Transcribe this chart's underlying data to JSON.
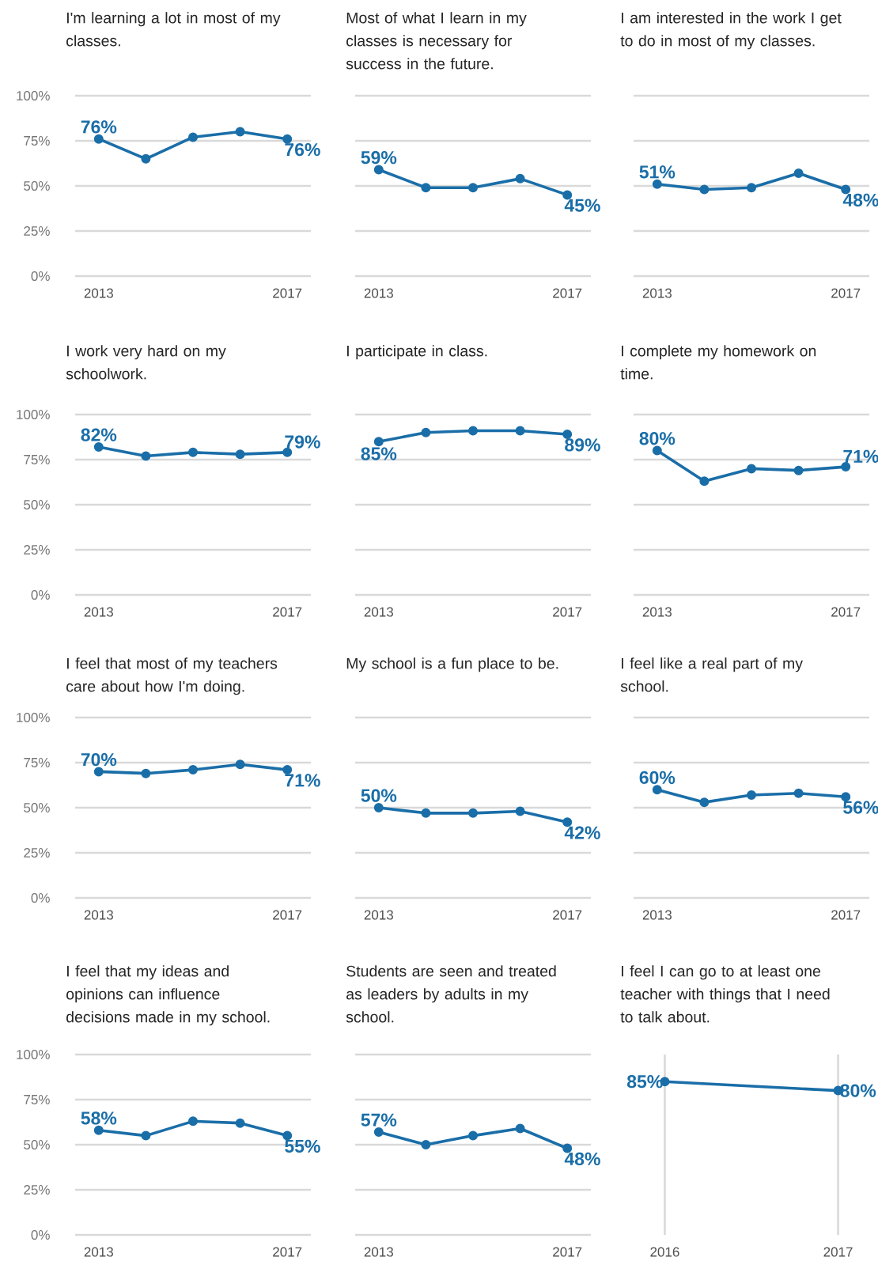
{
  "chart_data": [
    {
      "type": "line",
      "title": "I'm learning a lot in most of my classes.",
      "categories": [
        "2013",
        null,
        null,
        null,
        "2017"
      ],
      "values": [
        76,
        65,
        77,
        80,
        76
      ],
      "value_labels": [
        "76%",
        null,
        null,
        null,
        "76%"
      ],
      "color": "#1a6ea8",
      "ylim": [
        0,
        100
      ],
      "yticks": [
        {
          "value": 0,
          "label": "0%"
        },
        {
          "value": 25,
          "label": "25%"
        },
        {
          "value": 50,
          "label": "50%"
        },
        {
          "value": 75,
          "label": "75%"
        },
        {
          "value": 100,
          "label": "100%"
        }
      ],
      "grid": "y",
      "marker": "circle"
    },
    {
      "type": "line",
      "title": "Most of what I learn in my classes is necessary for success in the future.",
      "categories": [
        "2013",
        null,
        null,
        null,
        "2017"
      ],
      "values": [
        59,
        49,
        49,
        54,
        45
      ],
      "value_labels": [
        "59%",
        null,
        null,
        null,
        "45%"
      ],
      "color": "#1a6ea8",
      "ylim": [
        0,
        100
      ],
      "yticks": [
        0,
        25,
        50,
        75,
        100
      ],
      "grid": "y",
      "marker": "circle",
      "tick_labels": "x"
    },
    {
      "type": "line",
      "title": "I am interested in the work I get to do in most of my classes.",
      "categories": [
        "2013",
        null,
        null,
        null,
        "2017"
      ],
      "values": [
        51,
        48,
        49,
        57,
        48
      ],
      "value_labels": [
        "51%",
        null,
        null,
        null,
        "48%"
      ],
      "color": "#1a6ea8",
      "ylim": [
        0,
        100
      ],
      "yticks": [
        0,
        25,
        50,
        75,
        100
      ],
      "grid": "y",
      "marker": "circle",
      "tick_labels": "x"
    },
    {
      "type": "line",
      "title": "I work very hard on my schoolwork.",
      "categories": [
        "2013",
        null,
        null,
        null,
        "2017"
      ],
      "values": [
        82,
        77,
        79,
        78,
        79
      ],
      "value_labels": [
        "82%",
        null,
        null,
        null,
        "79%"
      ],
      "color": "#1a6ea8",
      "ylim": [
        0,
        100
      ],
      "yticks": [
        {
          "value": 0,
          "label": "0%"
        },
        {
          "value": 25,
          "label": "25%"
        },
        {
          "value": 50,
          "label": "50%"
        },
        {
          "value": 75,
          "label": "75%"
        },
        {
          "value": 100,
          "label": "100%"
        }
      ],
      "grid": "y",
      "marker": "circle"
    },
    {
      "type": "line",
      "title": "I participate in class.",
      "categories": [
        "2013",
        null,
        null,
        null,
        "2017"
      ],
      "values": [
        85,
        90,
        91,
        91,
        89
      ],
      "value_labels": [
        "85%",
        null,
        null,
        null,
        "89%"
      ],
      "color": "#1a6ea8",
      "ylim": [
        0,
        100
      ],
      "yticks": [
        0,
        25,
        50,
        75,
        100
      ],
      "grid": "y",
      "marker": "circle",
      "tick_labels": "x"
    },
    {
      "type": "line",
      "title": "I complete my homework on time.",
      "categories": [
        "2013",
        null,
        null,
        null,
        "2017"
      ],
      "values": [
        80,
        63,
        70,
        69,
        71
      ],
      "value_labels": [
        "80%",
        null,
        null,
        null,
        "71%"
      ],
      "color": "#1a6ea8",
      "ylim": [
        0,
        100
      ],
      "yticks": [
        0,
        25,
        50,
        75,
        100
      ],
      "grid": "y",
      "marker": "circle",
      "tick_labels": "x"
    },
    {
      "type": "line",
      "title": "I feel that most of my teachers care about how I'm doing.",
      "categories": [
        "2013",
        null,
        null,
        null,
        "2017"
      ],
      "values": [
        70,
        69,
        71,
        74,
        71
      ],
      "value_labels": [
        "70%",
        null,
        null,
        null,
        "71%"
      ],
      "color": "#1a6ea8",
      "ylim": [
        0,
        100
      ],
      "yticks": [
        {
          "value": 0,
          "label": "0%"
        },
        {
          "value": 25,
          "label": "25%"
        },
        {
          "value": 50,
          "label": "50%"
        },
        {
          "value": 75,
          "label": "75%"
        },
        {
          "value": 100,
          "label": "100%"
        }
      ],
      "grid": "y",
      "marker": "circle"
    },
    {
      "type": "line",
      "title": "My school is a fun place to be.",
      "categories": [
        "2013",
        null,
        null,
        null,
        "2017"
      ],
      "values": [
        50,
        47,
        47,
        48,
        42
      ],
      "value_labels": [
        "50%",
        null,
        null,
        null,
        "42%"
      ],
      "color": "#1a6ea8",
      "ylim": [
        0,
        100
      ],
      "yticks": [
        0,
        25,
        50,
        75,
        100
      ],
      "grid": "y",
      "marker": "circle",
      "tick_labels": "x"
    },
    {
      "type": "line",
      "title": "I feel like a real part of my school.",
      "categories": [
        "2013",
        null,
        null,
        null,
        "2017"
      ],
      "values": [
        60,
        53,
        57,
        58,
        56
      ],
      "value_labels": [
        "60%",
        null,
        null,
        null,
        "56%"
      ],
      "color": "#1a6ea8",
      "ylim": [
        0,
        100
      ],
      "yticks": [
        0,
        25,
        50,
        75,
        100
      ],
      "grid": "y",
      "marker": "circle",
      "tick_labels": "x"
    },
    {
      "type": "line",
      "title": "I feel that my ideas and opinions can influence decisions made in my school.",
      "categories": [
        "2013",
        null,
        null,
        null,
        "2017"
      ],
      "values": [
        58,
        55,
        63,
        62,
        55
      ],
      "value_labels": [
        "58%",
        null,
        null,
        null,
        "55%"
      ],
      "color": "#1a6ea8",
      "ylim": [
        0,
        100
      ],
      "yticks": [
        {
          "value": 0,
          "label": "0%"
        },
        {
          "value": 25,
          "label": "25%"
        },
        {
          "value": 50,
          "label": "50%"
        },
        {
          "value": 75,
          "label": "75%"
        },
        {
          "value": 100,
          "label": "100%"
        }
      ],
      "grid": "y",
      "marker": "circle"
    },
    {
      "type": "line",
      "title": "Students are seen and treated as leaders by adults in my school.",
      "categories": [
        "2013",
        null,
        null,
        null,
        "2017"
      ],
      "values": [
        57,
        50,
        55,
        59,
        48
      ],
      "value_labels": [
        "57%",
        null,
        null,
        null,
        "48%"
      ],
      "color": "#1a6ea8",
      "ylim": [
        0,
        100
      ],
      "yticks": [
        0,
        25,
        50,
        75,
        100
      ],
      "grid": "y",
      "marker": "circle",
      "tick_labels": "x"
    },
    {
      "type": "line",
      "title": "I feel I can go to at least one teacher with things that I need to talk about.",
      "categories": [
        "2016",
        "2017"
      ],
      "values": [
        85,
        80
      ],
      "value_labels": [
        "85%",
        "80%"
      ],
      "color": "#1a6ea8",
      "ylim": [
        0,
        100
      ],
      "grid": "x",
      "marker": "circle",
      "tick_labels": "x"
    }
  ]
}
